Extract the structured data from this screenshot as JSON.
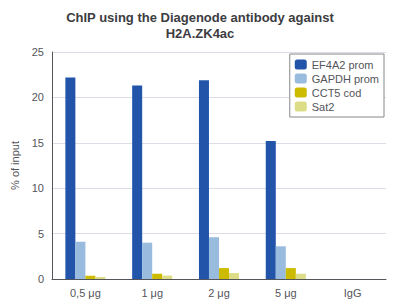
{
  "chart_data": {
    "type": "bar",
    "title": "ChIP using the Diagenode antibody against\nH2A.ZK4ac",
    "ylabel": "% of input",
    "categories": [
      "0,5 μg",
      "1 μg",
      "2 μg",
      "5 μg",
      "IgG"
    ],
    "series": [
      {
        "name": "EF4A2 prom",
        "color": "#2255AA",
        "values": [
          22.2,
          21.3,
          21.9,
          15.2,
          0.0
        ]
      },
      {
        "name": "GAPDH prom",
        "color": "#99BBDD",
        "values": [
          4.1,
          4.0,
          4.6,
          3.6,
          0.0
        ]
      },
      {
        "name": "CCT5 cod",
        "color": "#CCBB00",
        "values": [
          0.35,
          0.58,
          1.2,
          1.2,
          0.0
        ]
      },
      {
        "name": "Sat2",
        "color": "#DDDD88",
        "values": [
          0.22,
          0.38,
          0.65,
          0.58,
          0.0
        ]
      }
    ],
    "ylim": [
      0,
      25
    ],
    "yticks": [
      0,
      5,
      10,
      15,
      20,
      25
    ],
    "grid": true,
    "legend": "upper right"
  }
}
